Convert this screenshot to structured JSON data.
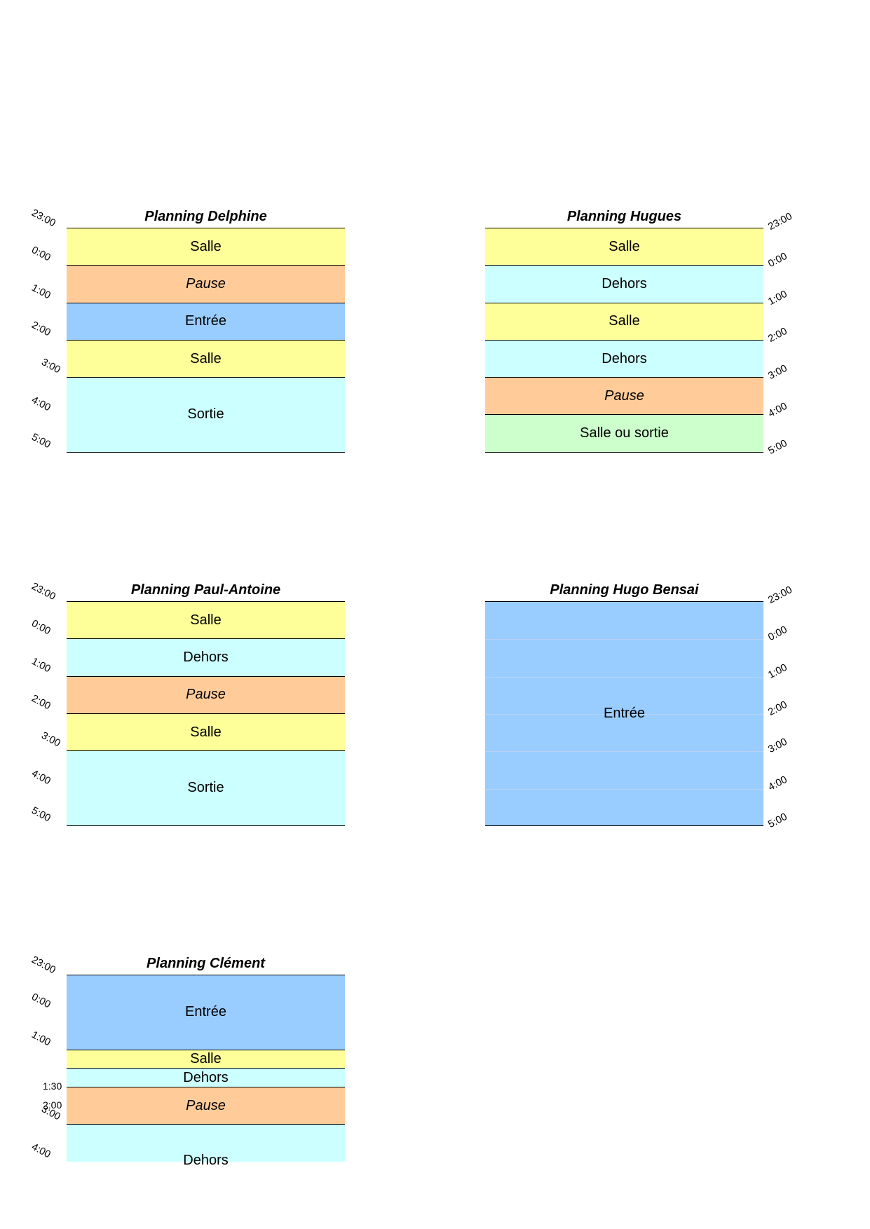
{
  "colors": {
    "salle": "#ffff99",
    "pause": "#ffcc99",
    "entree": "#99ccff",
    "dehors": "#ccffff",
    "sortie": "#ccffff",
    "salle_ou_sortie": "#ccffcc"
  },
  "plannings": [
    {
      "title": "Planning Delphine",
      "time_side": "left",
      "times": [
        "23:00",
        "0:00",
        "1:00",
        "2:00",
        "3:00",
        "4:00",
        "5:00"
      ],
      "segments": [
        {
          "label": "Salle",
          "hours": 1,
          "color": "#ffff99"
        },
        {
          "label": "Pause",
          "hours": 1,
          "color": "#ffcc99",
          "italic": true
        },
        {
          "label": "Entrée",
          "hours": 1,
          "color": "#99ccff"
        },
        {
          "label": "Salle",
          "hours": 1,
          "color": "#ffff99"
        },
        {
          "label": "Sortie",
          "hours": 2,
          "color": "#ccffff"
        }
      ]
    },
    {
      "title": "Planning Hugues",
      "time_side": "right",
      "times": [
        "23:00",
        "0:00",
        "1:00",
        "2:00",
        "3:00",
        "4:00",
        "5:00"
      ],
      "segments": [
        {
          "label": "Salle",
          "hours": 1,
          "color": "#ffff99"
        },
        {
          "label": "Dehors",
          "hours": 1,
          "color": "#ccffff"
        },
        {
          "label": "Salle",
          "hours": 1,
          "color": "#ffff99"
        },
        {
          "label": "Dehors",
          "hours": 1,
          "color": "#ccffff"
        },
        {
          "label": "Pause",
          "hours": 1,
          "color": "#ffcc99",
          "italic": true
        },
        {
          "label": "Salle ou sortie",
          "hours": 1,
          "color": "#ccffcc"
        }
      ]
    },
    {
      "title": "Planning Paul-Antoine",
      "time_side": "left",
      "times": [
        "23:00",
        "0:00",
        "1:00",
        "2:00",
        "3:00",
        "4:00",
        "5:00"
      ],
      "segments": [
        {
          "label": "Salle",
          "hours": 1,
          "color": "#ffff99"
        },
        {
          "label": "Dehors",
          "hours": 1,
          "color": "#ccffff"
        },
        {
          "label": "Pause",
          "hours": 1,
          "color": "#ffcc99",
          "italic": true
        },
        {
          "label": "Salle",
          "hours": 1,
          "color": "#ffff99"
        },
        {
          "label": "Sortie",
          "hours": 2,
          "color": "#ccffff"
        }
      ]
    },
    {
      "title": "Planning Hugo Bensai",
      "time_side": "right",
      "times": [
        "23:00",
        "0:00",
        "1:00",
        "2:00",
        "3:00",
        "4:00",
        "5:00"
      ],
      "segments": [
        {
          "label": "Entrée",
          "hours": 6,
          "color": "#99ccff",
          "faint_rows": true
        }
      ]
    },
    {
      "title": "Planning Clément",
      "time_side": "left",
      "times": [
        "23:00",
        "0:00",
        "1:00",
        "1:30",
        "2:00",
        "3:00",
        "4:00"
      ],
      "flat_times": [
        "1:30",
        "2:00"
      ],
      "segments": [
        {
          "label": "Entrée",
          "hours": 2,
          "color": "#99ccff"
        },
        {
          "label": "Salle",
          "hours": 0.5,
          "color": "#ffff99"
        },
        {
          "label": "Dehors",
          "hours": 0.5,
          "color": "#ccffff"
        },
        {
          "label": "Pause",
          "hours": 1,
          "color": "#ffcc99",
          "italic": true
        },
        {
          "label": "Dehors",
          "hours": 1,
          "color": "#ccffff",
          "cut": true
        }
      ]
    }
  ]
}
